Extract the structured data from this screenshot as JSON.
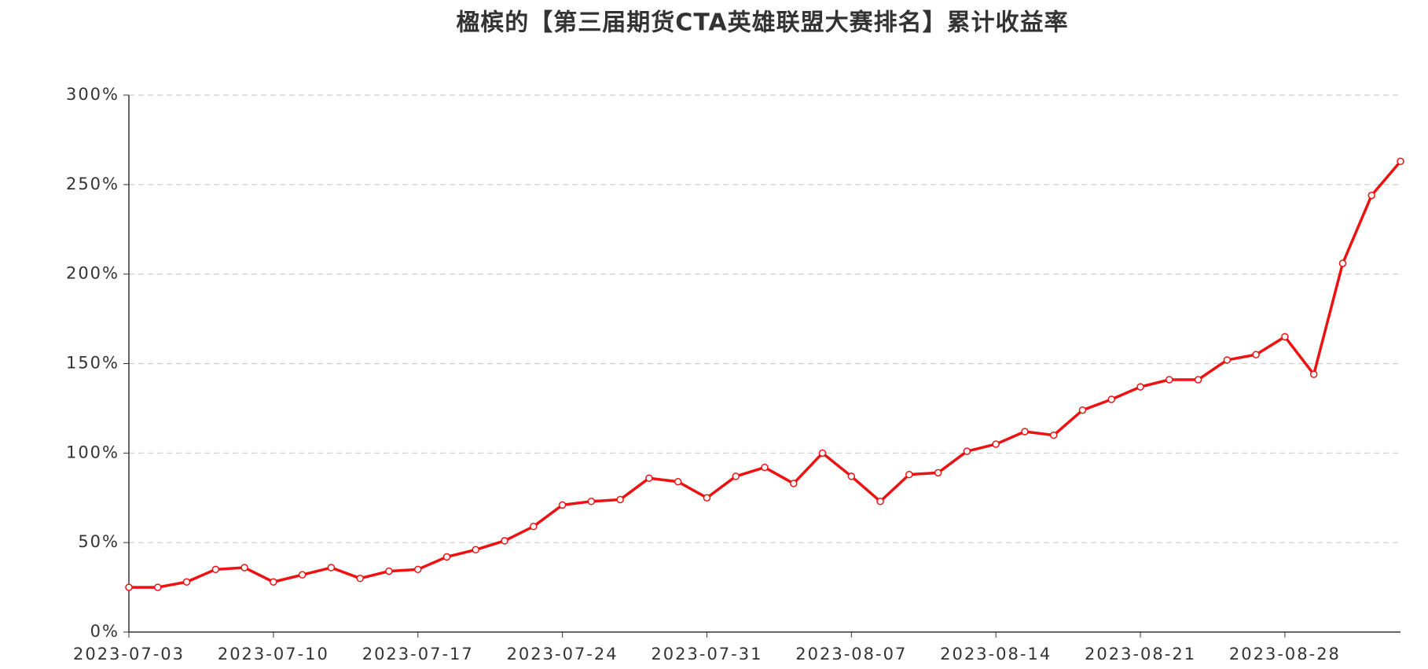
{
  "chart_data": {
    "type": "line",
    "title": "楹槟的【第三届期货CTA英雄联盟大赛排名】累计收益率",
    "categories": [
      "2023-07-03",
      null,
      null,
      null,
      null,
      "2023-07-10",
      null,
      null,
      null,
      null,
      "2023-07-17",
      null,
      null,
      null,
      null,
      "2023-07-24",
      null,
      null,
      null,
      null,
      "2023-07-31",
      null,
      null,
      null,
      null,
      "2023-08-07",
      null,
      null,
      null,
      null,
      "2023-08-14",
      null,
      null,
      null,
      null,
      "2023-08-21",
      null,
      null,
      null,
      null,
      "2023-08-28",
      null,
      null,
      null,
      null
    ],
    "series": [
      {
        "color": "#ee1111",
        "values": [
          25,
          25,
          28,
          35,
          36,
          28,
          32,
          36,
          30,
          34,
          35,
          42,
          46,
          51,
          59,
          71,
          73,
          74,
          86,
          84,
          75,
          87,
          92,
          83,
          100,
          87,
          73,
          88,
          89,
          101,
          105,
          112,
          110,
          124,
          130,
          137,
          141,
          141,
          152,
          155,
          165,
          144,
          206,
          244,
          263
        ]
      }
    ],
    "ylim": [
      0,
      300
    ],
    "yticks": [
      {
        "value": 0,
        "label": "0%"
      },
      {
        "value": 50,
        "label": "50%"
      },
      {
        "value": 100,
        "label": "100%"
      },
      {
        "value": 150,
        "label": "150%"
      },
      {
        "value": 200,
        "label": "200%"
      },
      {
        "value": 250,
        "label": "250%"
      },
      {
        "value": 300,
        "label": "300%"
      }
    ],
    "grid": true
  }
}
